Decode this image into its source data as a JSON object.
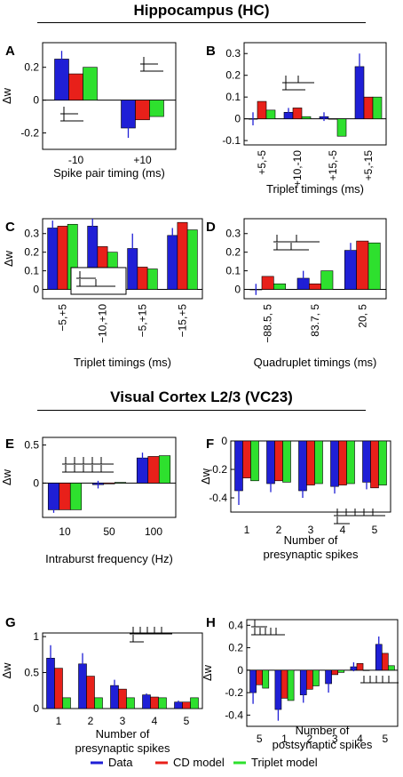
{
  "sections": {
    "hippocampus": "Hippocampus (HC)",
    "visual": "Visual Cortex L2/3 (VC23)"
  },
  "legend": [
    {
      "label": "Data",
      "color": "#1f1fd6"
    },
    {
      "label": "CD model",
      "color": "#e8201a"
    },
    {
      "label": "Triplet model",
      "color": "#2ee02e"
    }
  ],
  "chart_data": [
    {
      "panel": "A",
      "type": "bar",
      "categories": [
        "-10",
        "+10"
      ],
      "xlabel": "Spike pair timing (ms)",
      "ylabel": "Δw",
      "ylim": [
        -0.3,
        0.35
      ],
      "yticks": [
        -0.2,
        0,
        0.2
      ],
      "series": [
        {
          "name": "Data",
          "values": [
            0.25,
            -0.17
          ],
          "err": [
            0.05,
            0.06
          ]
        },
        {
          "name": "CD model",
          "values": [
            0.16,
            -0.12
          ]
        },
        {
          "name": "Triplet model",
          "values": [
            0.2,
            -0.1
          ]
        }
      ]
    },
    {
      "panel": "B",
      "type": "bar",
      "categories": [
        "+5,-5",
        "+10,-10",
        "+15,-5",
        "+5,-15"
      ],
      "xlabel": "Triplet timings (ms)",
      "ylabel": "",
      "ylim": [
        -0.12,
        0.35
      ],
      "yticks": [
        -0.1,
        0,
        0.1,
        0.2,
        0.3
      ],
      "series": [
        {
          "name": "Data",
          "values": [
            0.0,
            0.03,
            0.01,
            0.24
          ],
          "err": [
            0.03,
            0.02,
            0.02,
            0.06
          ]
        },
        {
          "name": "CD model",
          "values": [
            0.08,
            0.05,
            0.0,
            0.1
          ]
        },
        {
          "name": "Triplet model",
          "values": [
            0.04,
            0.01,
            -0.08,
            0.1
          ]
        }
      ]
    },
    {
      "panel": "C",
      "type": "bar",
      "categories": [
        "−5,+5",
        "−10,+10",
        "−5,+15",
        "−15,+5"
      ],
      "xlabel": "Triplet timings (ms)",
      "ylabel": "Δw",
      "ylim": [
        -0.05,
        0.38
      ],
      "yticks": [
        0,
        0.1,
        0.2,
        0.3
      ],
      "series": [
        {
          "name": "Data",
          "values": [
            0.33,
            0.34,
            0.22,
            0.29
          ],
          "err": [
            0.04,
            0.04,
            0.08,
            0.04
          ]
        },
        {
          "name": "CD model",
          "values": [
            0.34,
            0.23,
            0.12,
            0.36
          ]
        },
        {
          "name": "Triplet model",
          "values": [
            0.35,
            0.2,
            0.11,
            0.32
          ]
        }
      ]
    },
    {
      "panel": "D",
      "type": "bar",
      "categories": [
        "−88.5, 5",
        "83.7, 5",
        "20, 5"
      ],
      "xlabel": "Quadruplet timings (ms)",
      "ylabel": "",
      "ylim": [
        -0.05,
        0.38
      ],
      "yticks": [
        0,
        0.1,
        0.2,
        0.3
      ],
      "series": [
        {
          "name": "Data",
          "values": [
            0.0,
            0.06,
            0.21
          ],
          "err": [
            0.03,
            0.04,
            0.04
          ]
        },
        {
          "name": "CD model",
          "values": [
            0.07,
            0.03,
            0.26
          ]
        },
        {
          "name": "Triplet model",
          "values": [
            0.03,
            0.1,
            0.25
          ]
        }
      ]
    },
    {
      "panel": "E",
      "type": "bar",
      "categories": [
        "10",
        "50",
        "100"
      ],
      "xlabel": "Intraburst frequency (Hz)",
      "ylabel": "Δw",
      "ylim": [
        -0.45,
        0.6
      ],
      "yticks": [
        -0.5,
        0,
        0.5
      ],
      "series": [
        {
          "name": "Data",
          "values": [
            -0.35,
            -0.02,
            0.33
          ],
          "err": [
            0.04,
            0.05,
            0.07
          ]
        },
        {
          "name": "CD model",
          "values": [
            -0.35,
            -0.01,
            0.35
          ]
        },
        {
          "name": "Triplet model",
          "values": [
            -0.35,
            0.01,
            0.36
          ]
        }
      ]
    },
    {
      "panel": "F",
      "type": "bar",
      "categories": [
        "1",
        "2",
        "3",
        "4",
        "5"
      ],
      "xlabel": "Number of presynaptic spikes",
      "ylabel": "Δw",
      "ylim": [
        -0.5,
        0.0
      ],
      "yticks": [
        -0.4,
        -0.2,
        0
      ],
      "series": [
        {
          "name": "Data",
          "values": [
            -0.35,
            -0.3,
            -0.35,
            -0.32,
            -0.29
          ],
          "err": [
            0.1,
            0.06,
            0.05,
            0.05,
            0.05
          ]
        },
        {
          "name": "CD model",
          "values": [
            -0.26,
            -0.28,
            -0.31,
            -0.31,
            -0.33
          ]
        },
        {
          "name": "Triplet model",
          "values": [
            -0.28,
            -0.29,
            -0.3,
            -0.3,
            -0.31
          ]
        }
      ]
    },
    {
      "panel": "G",
      "type": "bar",
      "categories": [
        "1",
        "2",
        "3",
        "4",
        "5"
      ],
      "xlabel": "Number of presynaptic spikes",
      "ylabel": "Δw",
      "ylim": [
        0,
        1.05
      ],
      "yticks": [
        0,
        0.5,
        1
      ],
      "series": [
        {
          "name": "Data",
          "values": [
            0.7,
            0.62,
            0.32,
            0.19,
            0.09
          ],
          "err": [
            0.18,
            0.15,
            0.08,
            0.02,
            0.02
          ]
        },
        {
          "name": "CD model",
          "values": [
            0.56,
            0.45,
            0.27,
            0.16,
            0.09
          ]
        },
        {
          "name": "Triplet model",
          "values": [
            0.15,
            0.15,
            0.15,
            0.15,
            0.15
          ]
        }
      ]
    },
    {
      "panel": "H",
      "type": "bar",
      "categories": [
        "5",
        "1",
        "2",
        "3",
        "4",
        "5"
      ],
      "xlabel": "Number of postsynaptic spikes",
      "ylabel": "Δw",
      "ylim": [
        -0.5,
        0.45
      ],
      "yticks": [
        -0.4,
        -0.2,
        0,
        0.2,
        0.4
      ],
      "series": [
        {
          "name": "Data",
          "values": [
            -0.2,
            -0.35,
            -0.22,
            -0.12,
            0.03,
            0.23
          ],
          "err": [
            0.1,
            0.1,
            0.07,
            0.08,
            0.04,
            0.07
          ]
        },
        {
          "name": "CD model",
          "values": [
            -0.13,
            -0.25,
            -0.17,
            -0.04,
            0.06,
            0.15
          ]
        },
        {
          "name": "Triplet model",
          "values": [
            -0.16,
            -0.27,
            -0.14,
            -0.02,
            0.0,
            0.04
          ]
        }
      ]
    }
  ]
}
